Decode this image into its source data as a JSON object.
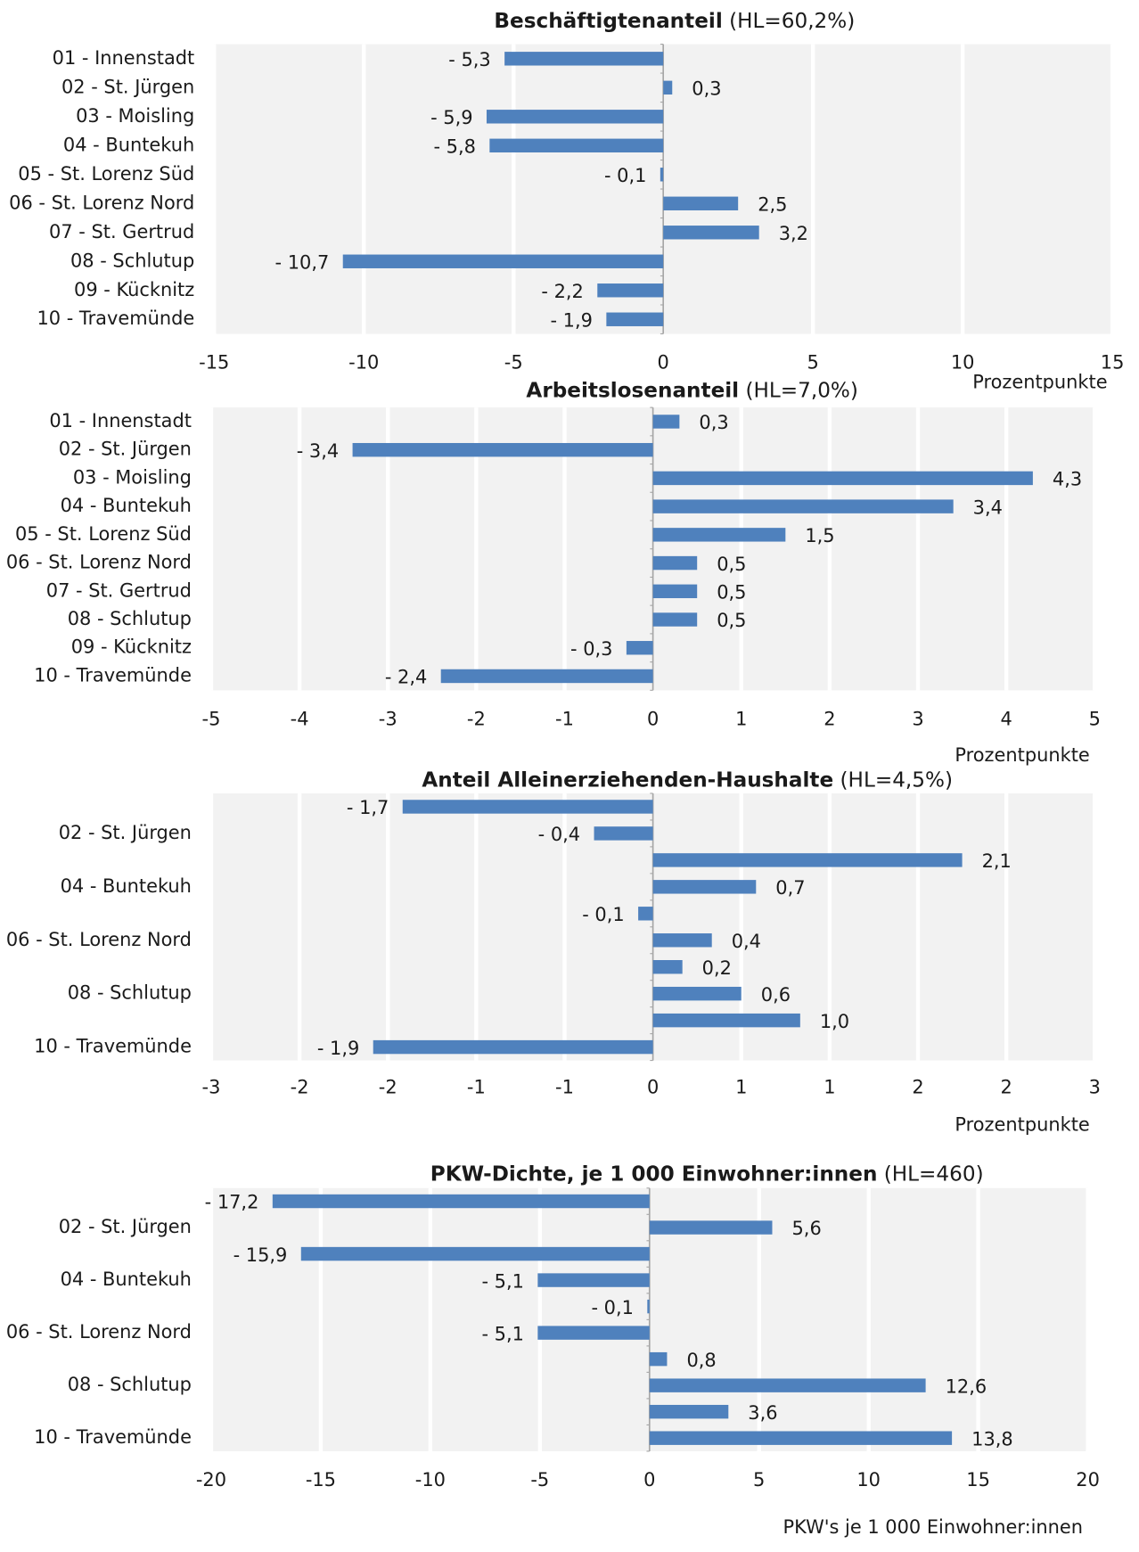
{
  "chart_data": [
    {
      "type": "bar",
      "orientation": "horizontal",
      "title": "Beschäftigtenanteil",
      "title_suffix": "(HL=60,2%)",
      "categories": [
        "01 - Innenstadt",
        "02 - St. Jürgen",
        "03 - Moisling",
        "04 - Buntekuh",
        "05 - St. Lorenz Süd",
        "06 - St. Lorenz Nord",
        "07 - St. Gertrud",
        "08 - Schlutup",
        "09 - Kücknitz",
        "10 - Travemünde"
      ],
      "values": [
        -5.3,
        0.3,
        -5.9,
        -5.8,
        -0.1,
        2.5,
        3.2,
        -10.7,
        -2.2,
        -1.9
      ],
      "value_labels": [
        "- 5,3",
        "0,3",
        "- 5,9",
        "- 5,8",
        "- 0,1",
        "2,5",
        "3,2",
        "- 10,7",
        "- 2,2",
        "- 1,9"
      ],
      "color": "#4f81bd",
      "xlim": [
        -15,
        15
      ],
      "xticks": [
        -15,
        -10,
        -5,
        0,
        5,
        10,
        15
      ],
      "x_label": "Prozentpunkte",
      "grid": true
    },
    {
      "type": "bar",
      "orientation": "horizontal",
      "title": "Arbeitslosenanteil",
      "title_suffix": "(HL=7,0%)",
      "categories": [
        "01 - Innenstadt",
        "02 - St. Jürgen",
        "03 - Moisling",
        "04 - Buntekuh",
        "05 - St. Lorenz Süd",
        "06 - St. Lorenz Nord",
        "07 - St. Gertrud",
        "08 - Schlutup",
        "09 - Kücknitz",
        "10 - Travemünde"
      ],
      "values": [
        0.3,
        -3.4,
        4.3,
        3.4,
        1.5,
        0.5,
        0.5,
        0.5,
        -0.3,
        -2.4
      ],
      "value_labels": [
        "0,3",
        "- 3,4",
        "4,3",
        "3,4",
        "1,5",
        "0,5",
        "0,5",
        "0,5",
        "- 0,3",
        "- 2,4"
      ],
      "color": "#4f81bd",
      "xlim": [
        -5,
        5
      ],
      "xticks": [
        -5,
        -4,
        -3,
        -2,
        -1,
        0,
        1,
        2,
        3,
        4,
        5
      ],
      "x_label": "Prozentpunkte",
      "grid": true
    },
    {
      "type": "bar",
      "orientation": "horizontal",
      "title": "Anteil Alleinerziehenden-Haushalte",
      "title_suffix": "(HL=4,5%)",
      "categories": [
        null,
        "02 - St. Jürgen",
        null,
        "04 - Buntekuh",
        null,
        "06 - St. Lorenz Nord",
        null,
        "08 - Schlutup",
        null,
        "10 - Travemünde"
      ],
      "values": [
        -1.7,
        -0.4,
        2.1,
        0.7,
        -0.1,
        0.4,
        0.2,
        0.6,
        1.0,
        -1.9
      ],
      "value_labels": [
        "- 1,7",
        "- 0,4",
        "2,1",
        "0,7",
        "- 0,1",
        "0,4",
        "0,2",
        "0,6",
        "1,0",
        "- 1,9"
      ],
      "color": "#4f81bd",
      "xlim": [
        -3,
        3
      ],
      "xticks": [
        -3,
        {
          "value": -2.4,
          "label": "-2"
        },
        {
          "value": -1.8,
          "label": "-2"
        },
        {
          "value": -1.2,
          "label": "-1"
        },
        {
          "value": -0.6,
          "label": "-1"
        },
        0,
        {
          "value": 0.6,
          "label": "1"
        },
        {
          "value": 1.2,
          "label": "1"
        },
        {
          "value": 1.8,
          "label": "2"
        },
        {
          "value": 2.4,
          "label": "2"
        },
        3
      ],
      "x_label": "Prozentpunkte",
      "grid": true
    },
    {
      "type": "bar",
      "orientation": "horizontal",
      "title": "PKW-Dichte, je 1 000 Einwohner:innen",
      "title_suffix": "(HL=460)",
      "categories": [
        null,
        "02 - St. Jürgen",
        null,
        "04 - Buntekuh",
        null,
        "06 - St. Lorenz Nord",
        null,
        "08 - Schlutup",
        null,
        "10 - Travemünde"
      ],
      "values": [
        -17.2,
        5.6,
        -15.9,
        -5.1,
        -0.1,
        -5.1,
        0.8,
        12.6,
        3.6,
        13.8
      ],
      "value_labels": [
        "- 17,2",
        "5,6",
        "- 15,9",
        "- 5,1",
        "- 0,1",
        "- 5,1",
        "0,8",
        "12,6",
        "3,6",
        "13,8"
      ],
      "color": "#4f81bd",
      "xlim": [
        -20,
        20
      ],
      "xticks": [
        -20,
        -15,
        -10,
        -5,
        0,
        5,
        10,
        15,
        20
      ],
      "x_label": "PKW's je 1 000 Einwohner:innen",
      "grid": true
    }
  ]
}
